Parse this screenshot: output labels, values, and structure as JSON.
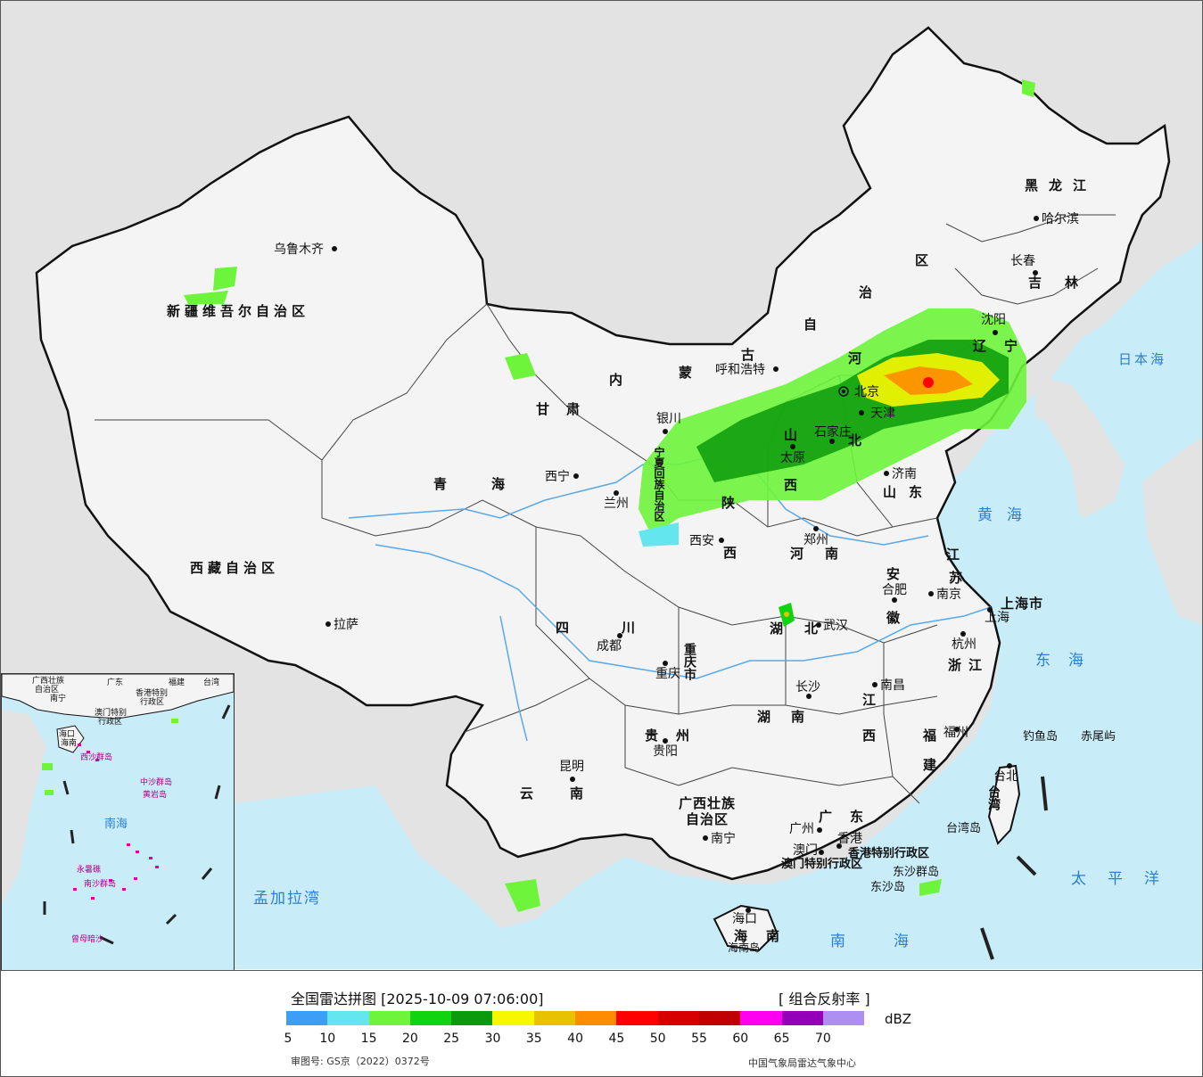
{
  "legend": {
    "title": "全国雷达拼图 [2025-10-09 07:06:00]",
    "product": "[ 组合反射率 ]",
    "unit": "dBZ",
    "ticks": [
      "5",
      "10",
      "15",
      "20",
      "25",
      "30",
      "35",
      "40",
      "45",
      "50",
      "55",
      "60",
      "65",
      "70"
    ],
    "colors": [
      "#3d9ef5",
      "#63e6ee",
      "#6ef53b",
      "#0fd40f",
      "#0b9a0b",
      "#f7f700",
      "#e6c200",
      "#ff8c00",
      "#ff0000",
      "#d60000",
      "#c00000",
      "#ff00f0",
      "#9400b8",
      "#ae8ef0"
    ],
    "approval": "审图号: GS京（2022）0372号",
    "producer": "中国气象局雷达气象中心"
  },
  "map": {
    "colors": {
      "sea": "#c9ecf9",
      "land": "#f4f4f4",
      "foreign": "#e3e3e3",
      "border": "#111111",
      "river": "#5aa8e8"
    },
    "cities": {
      "urumqi": "乌鲁木齐",
      "lhasa": "拉萨",
      "xining": "西宁",
      "lanzhou": "兰州",
      "yinchuan": "银川",
      "hohhot": "呼和浩特",
      "taiyuan": "太原",
      "shijiazhuang": "石家庄",
      "jinan": "济南",
      "zhengzhou": "郑州",
      "xian": "西安",
      "chengdu": "成都",
      "chongqing": "重庆",
      "kunming": "昆明",
      "guiyang": "贵阳",
      "nanning": "南宁",
      "guangzhou": "广州",
      "macau": "澳门",
      "hongkong": "香港",
      "haikou": "海口",
      "changsha": "长沙",
      "wuhan": "武汉",
      "hefei": "合肥",
      "nanjing": "南京",
      "hangzhou": "杭州",
      "nanchang": "南昌",
      "fuzhou": "福州",
      "taipei": "台北",
      "shanghai": "上海",
      "shenyang": "沈阳",
      "changchun": "长春",
      "harbin": "哈尔滨",
      "tianjin": "天津",
      "beijing": "北京"
    },
    "provinces": {
      "xinjiang": "新疆维吾尔自治区",
      "tibet": "西藏自治区",
      "qinghai": "青海",
      "gansu": "甘",
      "gansu2": "肃",
      "ningxia": "宁夏回族自治区",
      "inner1": "内",
      "inner2": "蒙",
      "inner3": "古",
      "inner4": "自",
      "inner5": "治",
      "inner6": "区",
      "heilongjiang": "黑龙江",
      "jilin": "吉林",
      "liaoning": "辽宁",
      "hebei1": "河",
      "hebei2": "北",
      "shanxi1": "山",
      "shanxi2": "西",
      "shaanxi1": "陕",
      "shaanxi2": "西",
      "shandong": "山东",
      "henan": "河南",
      "jiangsu1": "江",
      "jiangsu2": "苏",
      "anhui1": "安",
      "anhui2": "徽",
      "shanghai_p": "上海市",
      "zhejiang": "浙江",
      "hubei": "湖北",
      "hunan1": "湖",
      "hunan2": "南",
      "jiangxi1": "江",
      "jiangxi2": "西",
      "fujian1": "福",
      "fujian2": "建",
      "sichuan1": "四",
      "sichuan2": "川",
      "chongqing_p": "重庆市",
      "guizhou": "贵州",
      "yunnan1": "云",
      "yunnan2": "南",
      "guangxi1": "广西壮族",
      "guangxi2": "自治区",
      "guangdong": "广东",
      "hainan1": "海",
      "hainan2": "南",
      "taiwan": "台湾",
      "hk_sar": "香港特别行政区",
      "macau_sar": "澳门特别行政区"
    },
    "seas": {
      "japan_sea": "日本海",
      "yellow_sea": "黄海",
      "east_sea": "东海",
      "pacific": "太平洋",
      "south_sea": "南海",
      "bengal": "孟加拉湾"
    },
    "islands": {
      "diaoyu": "钓鱼岛",
      "chiwei": "赤尾屿",
      "taiwan_island": "台湾岛",
      "dongsha": "东沙群岛",
      "dongsha_isl": "东沙岛",
      "hainan_isl": "海南岛"
    },
    "inset": {
      "guangxi": "广西壮族",
      "guangxi2": "自治区",
      "nanning": "南宁",
      "guangdong": "广东",
      "fujian": "福建",
      "taiwan": "台湾",
      "hk": "香港特别",
      "hk2": "行政区",
      "macau": "澳门特别",
      "macau2": "行政区",
      "haikou": "海口",
      "hainan": "海南",
      "xisha": "西沙群岛",
      "zhongsha": "中沙群岛",
      "huangyan": "黄岩岛",
      "south_sea": "南海",
      "nansha": "南沙群岛",
      "zengmu": "曾母暗沙",
      "yongshu": "永暑礁"
    }
  }
}
